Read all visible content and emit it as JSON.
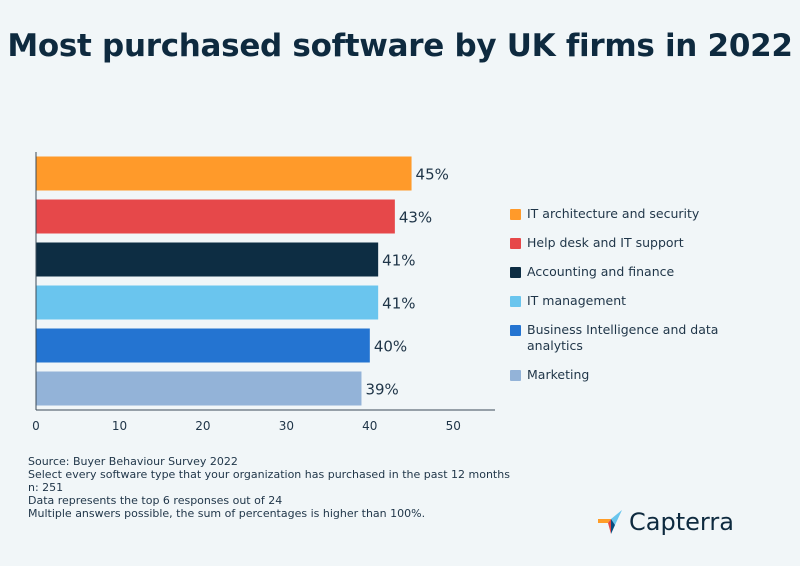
{
  "chart_data": {
    "type": "bar",
    "orientation": "horizontal",
    "title": "Most purchased software by UK firms in 2022",
    "categories": [
      "IT architecture and security",
      "Help desk and IT support",
      "Accounting and finance",
      "IT management",
      "Business Intelligence and data analytics",
      "Marketing"
    ],
    "values": [
      45,
      43,
      41,
      41,
      40,
      39
    ],
    "value_labels": [
      "45%",
      "43%",
      "41%",
      "41%",
      "40%",
      "39%"
    ],
    "colors": [
      "#ff9a2a",
      "#e6484a",
      "#0d2d43",
      "#6ac5ee",
      "#2474d1",
      "#93b3d8"
    ],
    "xlim": [
      0,
      55
    ],
    "xticks": [
      0,
      10,
      20,
      30,
      40,
      50
    ],
    "legend_position": "right",
    "grid": false
  },
  "notes": [
    "Source: Buyer Behaviour Survey 2022",
    "Select every software type that your organization has purchased in the past 12 months",
    "n: 251",
    "Data represents the top 6 responses out of 24",
    "Multiple answers possible, the sum of percentages is higher than 100%."
  ],
  "logo": {
    "text": "Capterra"
  }
}
